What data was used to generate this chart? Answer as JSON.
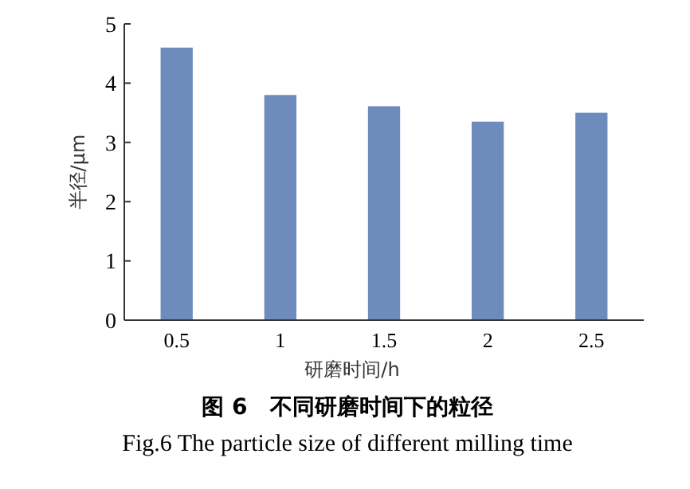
{
  "chart_data": {
    "type": "bar",
    "title": "图 6　不同研磨时间下的粒径",
    "subtitle": "Fig.6 The particle size of different milling time",
    "xlabel": "研磨时间/h",
    "ylabel": "半径/μm",
    "categories": [
      "0.5",
      "1",
      "1.5",
      "2",
      "2.5"
    ],
    "values": [
      4.6,
      3.8,
      3.61,
      3.35,
      3.5
    ],
    "color": "#6d8bbd",
    "ylim": [
      0,
      5
    ],
    "yticks": [
      0,
      1,
      2,
      3,
      4,
      5
    ],
    "grid": false
  }
}
